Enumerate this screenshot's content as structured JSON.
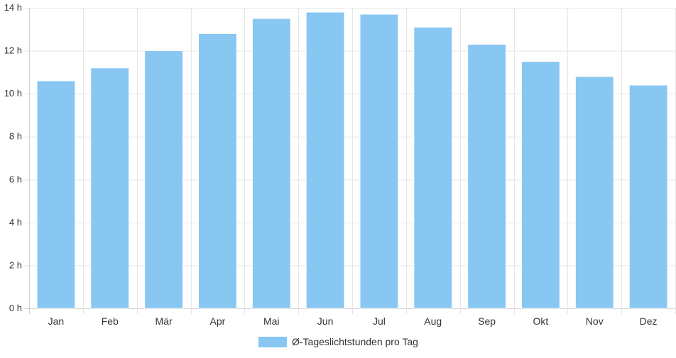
{
  "chart_data": {
    "type": "bar",
    "categories": [
      "Jan",
      "Feb",
      "Mär",
      "Apr",
      "Mai",
      "Jun",
      "Jul",
      "Aug",
      "Sep",
      "Okt",
      "Nov",
      "Dez"
    ],
    "series": [
      {
        "name": "Ø-Tageslichtstunden pro Tag",
        "values": [
          10.6,
          11.2,
          12.0,
          12.8,
          13.5,
          13.8,
          13.7,
          13.1,
          12.3,
          11.5,
          10.8,
          10.4
        ],
        "color": "#87c7f2"
      }
    ],
    "yticks": [
      "0 h",
      "2 h",
      "4 h",
      "6 h",
      "8 h",
      "10 h",
      "12 h",
      "14 h"
    ],
    "ylim": [
      0,
      14
    ],
    "grid": true,
    "legend_position": "bottom"
  }
}
